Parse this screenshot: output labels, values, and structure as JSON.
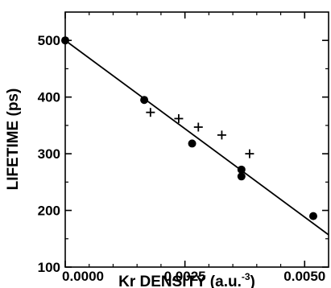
{
  "chart_data": {
    "type": "scatter",
    "title": "",
    "xlabel": "Kr DENSITY (a.u.",
    "xlabel_sup": "-3",
    "xlabel_end": ")",
    "ylabel": "LIFETIME (ps)",
    "xlim": [
      0,
      0.0055
    ],
    "ylim": [
      100,
      550
    ],
    "x_ticks": [
      0.0,
      0.0025,
      0.005
    ],
    "x_tick_labels": [
      "0.0000",
      "0.0025",
      "0.0050"
    ],
    "y_ticks": [
      100,
      200,
      300,
      400,
      500
    ],
    "y_tick_labels": [
      "100",
      "200",
      "300",
      "400",
      "500"
    ],
    "series": [
      {
        "marker": "circle",
        "points": [
          {
            "x": 0.0,
            "y": 500
          },
          {
            "x": 0.00165,
            "y": 395
          },
          {
            "x": 0.00265,
            "y": 318
          },
          {
            "x": 0.00368,
            "y": 272
          },
          {
            "x": 0.00368,
            "y": 260
          },
          {
            "x": 0.00518,
            "y": 190
          }
        ]
      },
      {
        "marker": "plus",
        "points": [
          {
            "x": 0.00178,
            "y": 373
          },
          {
            "x": 0.00237,
            "y": 362
          },
          {
            "x": 0.00278,
            "y": 347
          },
          {
            "x": 0.00327,
            "y": 333
          },
          {
            "x": 0.00385,
            "y": 300
          }
        ]
      },
      {
        "marker": "line",
        "points": [
          {
            "x": 0.0,
            "y": 500
          },
          {
            "x": 0.0055,
            "y": 157
          }
        ]
      }
    ]
  }
}
